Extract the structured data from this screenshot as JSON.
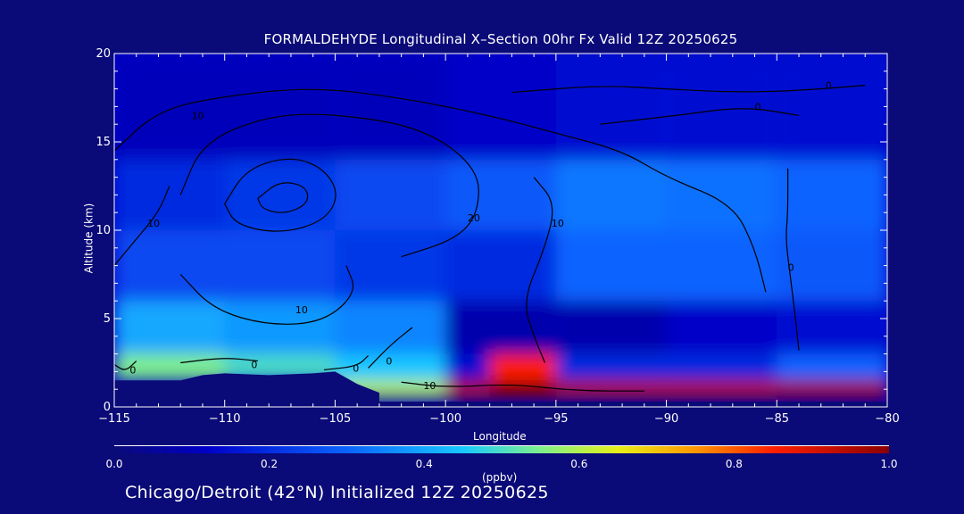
{
  "chart_data": {
    "type": "heatmap",
    "title": "FORMALDEHYDE Longitudinal X–Section 00hr  Fx Valid 12Z 20250625",
    "xlabel": "Longitude",
    "ylabel": "Altitude (km)",
    "xlim": [
      -115,
      -80
    ],
    "ylim": [
      0,
      20
    ],
    "x_ticks": [
      "−115",
      "−110",
      "−105",
      "−100",
      "−95",
      "−90",
      "−85",
      "−80"
    ],
    "x_tick_values": [
      -115,
      -110,
      -105,
      -100,
      -95,
      -90,
      -85,
      -80
    ],
    "y_ticks": [
      "0",
      "5",
      "10",
      "15",
      "20"
    ],
    "y_tick_values": [
      0,
      5,
      10,
      15,
      20
    ],
    "colorbar": {
      "min": 0.0,
      "max": 1.0,
      "ticks": [
        "0.0",
        "0.2",
        "0.4",
        "0.6",
        "0.8",
        "1.0"
      ],
      "units": "(ppbv)"
    },
    "field_rows": [
      {
        "alt_range": [
          14,
          20
        ],
        "lon": [
          -115,
          -105,
          -100,
          -95,
          -90,
          -85,
          -80
        ],
        "values": [
          0.1,
          0.1,
          0.12,
          0.15,
          0.15,
          0.15,
          0.12
        ]
      },
      {
        "alt_range": [
          10,
          14
        ],
        "lon": [
          -115,
          -110,
          -105,
          -100,
          -95,
          -90,
          -85,
          -80
        ],
        "values": [
          0.2,
          0.22,
          0.25,
          0.28,
          0.33,
          0.32,
          0.3,
          0.28
        ]
      },
      {
        "alt_range": [
          6,
          10
        ],
        "lon": [
          -115,
          -110,
          -105,
          -100,
          -95,
          -90,
          -85,
          -80
        ],
        "values": [
          0.25,
          0.25,
          0.22,
          0.2,
          0.3,
          0.3,
          0.28,
          0.25
        ]
      },
      {
        "alt_range": [
          3,
          6
        ],
        "lon": [
          -115,
          -110,
          -105,
          -100,
          -95,
          -90,
          -85,
          -80
        ],
        "values": [
          0.4,
          0.38,
          0.35,
          0.08,
          0.08,
          0.12,
          0.15,
          0.18
        ]
      },
      {
        "alt_range": [
          1.5,
          3
        ],
        "lon": [
          -115,
          -110,
          -105,
          -100,
          -98,
          -95,
          -90,
          -85,
          -80
        ],
        "values": [
          0.55,
          0.5,
          0.45,
          0.15,
          0.85,
          0.2,
          0.2,
          0.3,
          0.35
        ]
      },
      {
        "alt_range": [
          0.5,
          1.5
        ],
        "lon": [
          -105,
          -100,
          -98,
          -95,
          -90,
          -85,
          -80
        ],
        "values": [
          0.6,
          0.95,
          1.0,
          0.95,
          0.95,
          0.97,
          0.9
        ]
      }
    ],
    "contours": [
      {
        "label": "10",
        "label_pos": [
          -111.5,
          16.3
        ],
        "points": [
          [
            -115,
            14.5
          ],
          [
            -113,
            16.8
          ],
          [
            -110,
            17.6
          ],
          [
            -106,
            18.1
          ],
          [
            -102,
            17.5
          ],
          [
            -98,
            16.5
          ],
          [
            -95,
            15.5
          ],
          [
            -92,
            14.5
          ],
          [
            -90,
            13
          ],
          [
            -87,
            11.5
          ],
          [
            -86,
            9
          ],
          [
            -85.5,
            6.5
          ]
        ]
      },
      {
        "label": "20",
        "label_pos": [
          -99,
          10.5
        ],
        "points": [
          [
            -112,
            12
          ],
          [
            -111,
            15
          ],
          [
            -108,
            16.5
          ],
          [
            -105,
            16.6
          ],
          [
            -101,
            15.8
          ],
          [
            -98.5,
            13.5
          ],
          [
            -98.5,
            11
          ],
          [
            -99.5,
            9.5
          ],
          [
            -102,
            8.5
          ]
        ]
      },
      {
        "label": "",
        "label_pos": null,
        "points": [
          [
            -110,
            11.5
          ],
          [
            -109,
            13.5
          ],
          [
            -107,
            14.2
          ],
          [
            -105.5,
            13.5
          ],
          [
            -104.8,
            12
          ],
          [
            -105.5,
            10.5
          ],
          [
            -107.5,
            9.8
          ],
          [
            -109.5,
            10.3
          ],
          [
            -110,
            11.5
          ]
        ]
      },
      {
        "label": "",
        "label_pos": null,
        "points": [
          [
            -108.5,
            11.8
          ],
          [
            -107.5,
            12.8
          ],
          [
            -106.3,
            12.5
          ],
          [
            -106.2,
            11.5
          ],
          [
            -107.3,
            10.9
          ],
          [
            -108.3,
            11.2
          ],
          [
            -108.5,
            11.8
          ]
        ]
      },
      {
        "label": "10",
        "label_pos": [
          -106.8,
          5.3
        ],
        "points": [
          [
            -112,
            7.5
          ],
          [
            -110.5,
            5.5
          ],
          [
            -108,
            4.6
          ],
          [
            -105.5,
            4.8
          ],
          [
            -104,
            6.5
          ],
          [
            -104.5,
            8
          ]
        ]
      },
      {
        "label": "10",
        "label_pos": [
          -95.2,
          10.2
        ],
        "points": [
          [
            -96,
            13
          ],
          [
            -95,
            11.5
          ],
          [
            -95.5,
            9
          ],
          [
            -96.5,
            6
          ],
          [
            -96,
            4
          ],
          [
            -95.5,
            2.5
          ]
        ]
      },
      {
        "label": "0",
        "label_pos": [
          -84.5,
          7.7
        ],
        "points": [
          [
            -84.5,
            13.5
          ],
          [
            -84.5,
            11
          ],
          [
            -84.6,
            9.5
          ],
          [
            -84.4,
            7.5
          ],
          [
            -84.2,
            5.5
          ],
          [
            -84.0,
            3.2
          ]
        ]
      },
      {
        "label": "0",
        "label_pos": [
          -82.8,
          18
        ],
        "points": [
          [
            -97,
            17.8
          ],
          [
            -93,
            18.2
          ],
          [
            -90,
            18
          ],
          [
            -87,
            17.8
          ],
          [
            -84,
            17.9
          ],
          [
            -81,
            18.2
          ]
        ]
      },
      {
        "label": "0",
        "label_pos": [
          -86,
          16.8
        ],
        "points": [
          [
            -93,
            16
          ],
          [
            -89.5,
            16.5
          ],
          [
            -86.5,
            17
          ],
          [
            -84,
            16.5
          ]
        ]
      },
      {
        "label": "0",
        "label_pos": [
          -102.7,
          2.4
        ],
        "points": [
          [
            -103.5,
            2.2
          ],
          [
            -102.5,
            3.5
          ],
          [
            -101.5,
            4.5
          ]
        ]
      },
      {
        "label": "10",
        "label_pos": [
          -101,
          1.0
        ],
        "points": [
          [
            -102,
            1.4
          ],
          [
            -100,
            1.1
          ],
          [
            -97,
            1.3
          ],
          [
            -94,
            0.9
          ],
          [
            -91,
            0.9
          ]
        ]
      },
      {
        "label": "0",
        "label_pos": [
          -104.2,
          2.0
        ],
        "points": [
          [
            -105.5,
            2.1
          ],
          [
            -104,
            2.3
          ],
          [
            -103.5,
            2.9
          ]
        ]
      },
      {
        "label": "0",
        "label_pos": [
          -108.8,
          2.2
        ],
        "points": [
          [
            -112,
            2.5
          ],
          [
            -110,
            2.8
          ],
          [
            -108.5,
            2.6
          ]
        ]
      },
      {
        "label": "0",
        "label_pos": [
          -114.3,
          1.9
        ],
        "points": [
          [
            -115,
            2.4
          ],
          [
            -114.5,
            2.0
          ],
          [
            -114,
            2.6
          ]
        ]
      },
      {
        "label": "10",
        "label_pos": [
          -113.5,
          10.2
        ],
        "points": [
          [
            -115,
            8
          ],
          [
            -114,
            9.5
          ],
          [
            -113,
            11
          ],
          [
            -112.5,
            12.5
          ]
        ]
      }
    ],
    "terrain": {
      "lon": [
        -115,
        -112,
        -111,
        -110,
        -108,
        -106,
        -105,
        -104,
        -103
      ],
      "alt": [
        1.5,
        1.5,
        1.8,
        1.9,
        1.8,
        1.9,
        2.0,
        1.3,
        0.8
      ]
    }
  },
  "footer_text": "Chicago/Detroit (42°N) Initialized 12Z 20250625"
}
